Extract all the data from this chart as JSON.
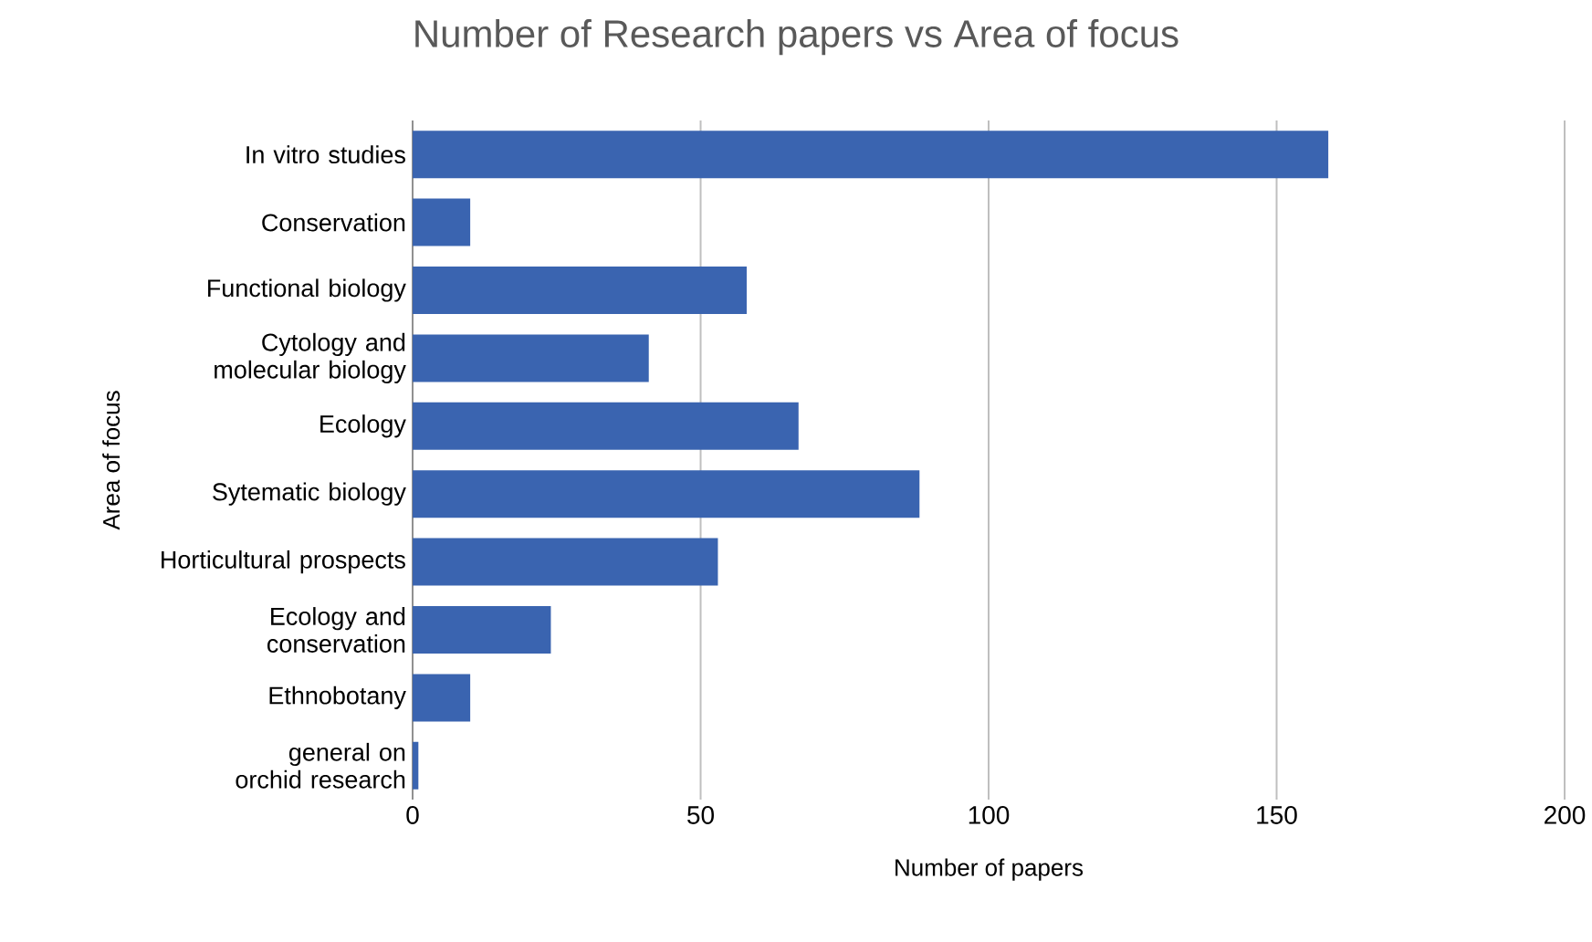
{
  "chart_data": {
    "type": "bar",
    "orientation": "horizontal",
    "title": "Number of Research papers vs Area of focus",
    "xlabel": "Number of papers",
    "ylabel": "Area of focus",
    "categories": [
      "In vitro studies",
      "Conservation",
      "Functional biology",
      "Cytology and molecular biology",
      "Ecology",
      "Sytematic biology",
      "Horticultural prospects",
      "Ecology and conservation",
      "Ethnobotany",
      "general on orchid research"
    ],
    "values": [
      159,
      10,
      58,
      41,
      67,
      88,
      53,
      24,
      10,
      1
    ],
    "color": "#3a64b0",
    "xlim": [
      0,
      200
    ],
    "xticks": [
      0,
      50,
      100,
      150,
      200
    ],
    "grid": "x"
  }
}
